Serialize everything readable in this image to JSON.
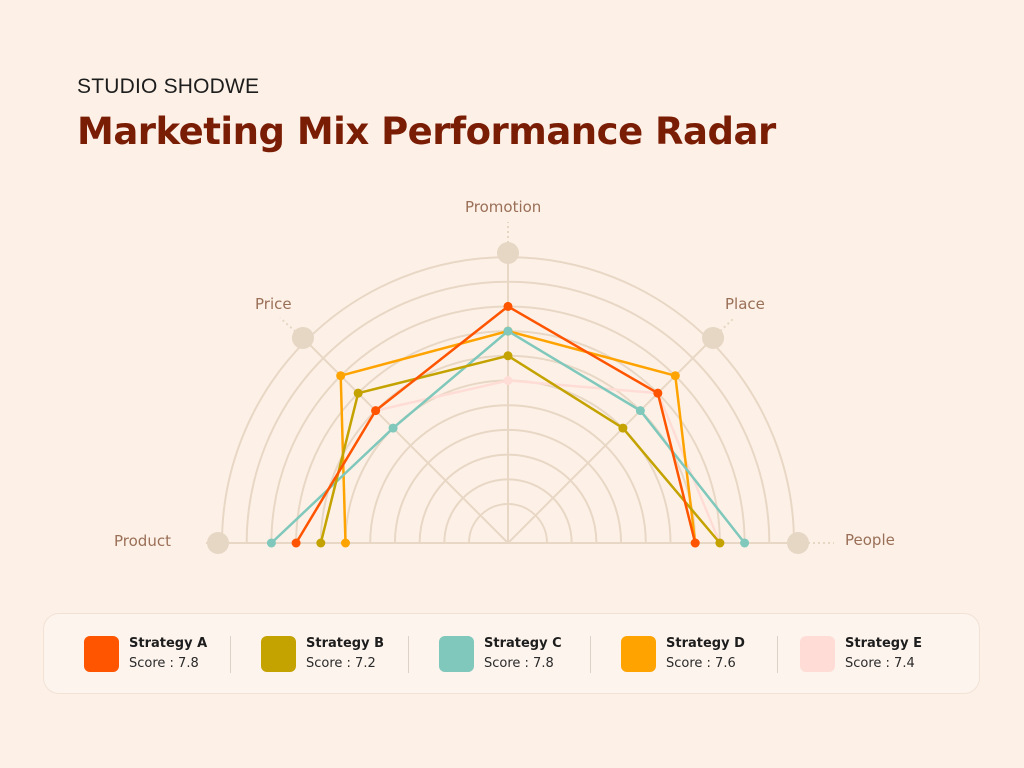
{
  "header": {
    "brand": "STUDIO SHODWE",
    "title": "Marketing Mix Performance Radar"
  },
  "colors": {
    "background": "#fdf1e7",
    "title": "#7a1d05",
    "grid": "#e8d7c5",
    "handle": "#e6d6c4",
    "axis_label": "#9a6f57"
  },
  "chart_data": {
    "type": "radar",
    "title": "Marketing Mix Performance Radar",
    "layout": "semicircle",
    "axes": [
      "Product",
      "Price",
      "Promotion",
      "Place",
      "People"
    ],
    "range": [
      0,
      10
    ],
    "rings": 11,
    "grid": true,
    "legend_position": "bottom",
    "series": [
      {
        "name": "Strategy A",
        "color": "#ff5500",
        "score": "7.8",
        "values": [
          7,
          6,
          8,
          7,
          6
        ]
      },
      {
        "name": "Strategy B",
        "color": "#c4a200",
        "score": "7.2",
        "values": [
          6,
          7,
          6,
          5,
          7
        ]
      },
      {
        "name": "Strategy C",
        "color": "#7fc8bb",
        "score": "7.8",
        "values": [
          8,
          5,
          7,
          6,
          8
        ]
      },
      {
        "name": "Strategy D",
        "color": "#ffa300",
        "score": "7.6",
        "values": [
          5,
          8,
          7,
          8,
          6
        ]
      },
      {
        "name": "Strategy E",
        "color": "#ffddd6",
        "score": "7.4",
        "values": [
          7,
          6,
          5,
          7,
          7
        ]
      }
    ]
  },
  "axis_labels": {
    "product": "Product",
    "price": "Price",
    "promotion": "Promotion",
    "place": "Place",
    "people": "People"
  },
  "legend": {
    "items": [
      {
        "name": "Strategy A",
        "score_text": "Score : 7.8",
        "color": "#ff5500"
      },
      {
        "name": "Strategy B",
        "score_text": "Score : 7.2",
        "color": "#c4a200"
      },
      {
        "name": "Strategy C",
        "score_text": "Score : 7.8",
        "color": "#7fc8bb"
      },
      {
        "name": "Strategy D",
        "score_text": "Score : 7.6",
        "color": "#ffa300"
      },
      {
        "name": "Strategy E",
        "score_text": "Score : 7.4",
        "color": "#ffddd6"
      }
    ]
  }
}
